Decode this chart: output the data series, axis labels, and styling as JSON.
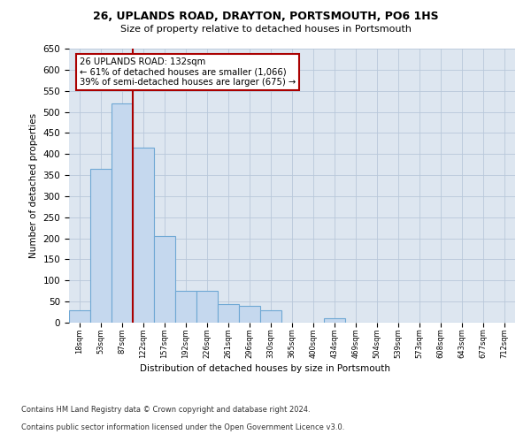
{
  "title1": "26, UPLANDS ROAD, DRAYTON, PORTSMOUTH, PO6 1HS",
  "title2": "Size of property relative to detached houses in Portsmouth",
  "xlabel": "Distribution of detached houses by size in Portsmouth",
  "ylabel": "Number of detached properties",
  "categories": [
    "18sqm",
    "53sqm",
    "87sqm",
    "122sqm",
    "157sqm",
    "192sqm",
    "226sqm",
    "261sqm",
    "296sqm",
    "330sqm",
    "365sqm",
    "400sqm",
    "434sqm",
    "469sqm",
    "504sqm",
    "539sqm",
    "573sqm",
    "608sqm",
    "643sqm",
    "677sqm",
    "712sqm"
  ],
  "values": [
    30,
    365,
    520,
    415,
    205,
    75,
    75,
    45,
    40,
    30,
    0,
    0,
    10,
    0,
    0,
    0,
    0,
    0,
    0,
    0,
    0
  ],
  "bar_color": "#c5d8ee",
  "bar_edge_color": "#6fa8d4",
  "vline_color": "#aa0000",
  "annotation_text": "26 UPLANDS ROAD: 132sqm\n← 61% of detached houses are smaller (1,066)\n39% of semi-detached houses are larger (675) →",
  "annotation_box_color": "#ffffff",
  "annotation_box_edge": "#aa0000",
  "ylim": [
    0,
    650
  ],
  "yticks": [
    0,
    50,
    100,
    150,
    200,
    250,
    300,
    350,
    400,
    450,
    500,
    550,
    600,
    650
  ],
  "background_color": "#dde6f0",
  "footer1": "Contains HM Land Registry data © Crown copyright and database right 2024.",
  "footer2": "Contains public sector information licensed under the Open Government Licence v3.0."
}
